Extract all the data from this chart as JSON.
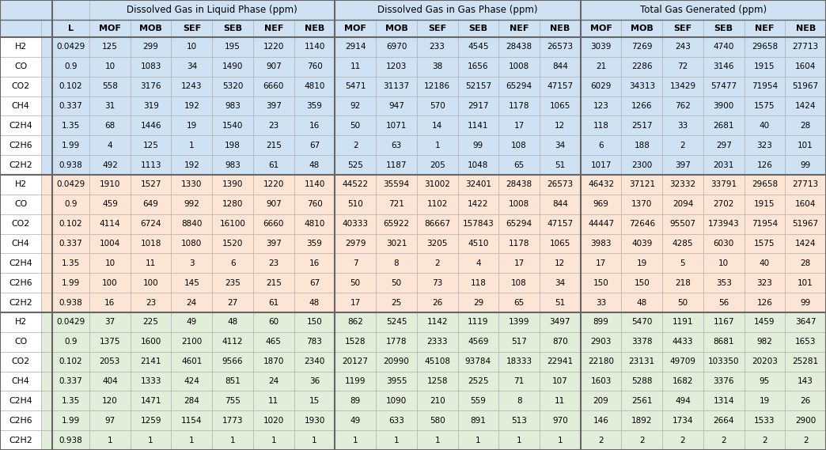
{
  "row_groups": [
    {
      "color": "#cfe2f3",
      "rows": [
        [
          "H2",
          "0.0429",
          "125",
          "299",
          "10",
          "195",
          "1220",
          "1140",
          "2914",
          "6970",
          "233",
          "4545",
          "28438",
          "26573",
          "3039",
          "7269",
          "243",
          "4740",
          "29658",
          "27713"
        ],
        [
          "CO",
          "0.9",
          "10",
          "1083",
          "34",
          "1490",
          "907",
          "760",
          "11",
          "1203",
          "38",
          "1656",
          "1008",
          "844",
          "21",
          "2286",
          "72",
          "3146",
          "1915",
          "1604"
        ],
        [
          "CO2",
          "0.102",
          "558",
          "3176",
          "1243",
          "5320",
          "6660",
          "4810",
          "5471",
          "31137",
          "12186",
          "52157",
          "65294",
          "47157",
          "6029",
          "34313",
          "13429",
          "57477",
          "71954",
          "51967"
        ],
        [
          "CH4",
          "0.337",
          "31",
          "319",
          "192",
          "983",
          "397",
          "359",
          "92",
          "947",
          "570",
          "2917",
          "1178",
          "1065",
          "123",
          "1266",
          "762",
          "3900",
          "1575",
          "1424"
        ],
        [
          "C2H4",
          "1.35",
          "68",
          "1446",
          "19",
          "1540",
          "23",
          "16",
          "50",
          "1071",
          "14",
          "1141",
          "17",
          "12",
          "118",
          "2517",
          "33",
          "2681",
          "40",
          "28"
        ],
        [
          "C2H6",
          "1.99",
          "4",
          "125",
          "1",
          "198",
          "215",
          "67",
          "2",
          "63",
          "1",
          "99",
          "108",
          "34",
          "6",
          "188",
          "2",
          "297",
          "323",
          "101"
        ],
        [
          "C2H2",
          "0.938",
          "492",
          "1113",
          "192",
          "983",
          "61",
          "48",
          "525",
          "1187",
          "205",
          "1048",
          "65",
          "51",
          "1017",
          "2300",
          "397",
          "2031",
          "126",
          "99"
        ]
      ]
    },
    {
      "color": "#fce5d4",
      "rows": [
        [
          "H2",
          "0.0429",
          "1910",
          "1527",
          "1330",
          "1390",
          "1220",
          "1140",
          "44522",
          "35594",
          "31002",
          "32401",
          "28438",
          "26573",
          "46432",
          "37121",
          "32332",
          "33791",
          "29658",
          "27713"
        ],
        [
          "CO",
          "0.9",
          "459",
          "649",
          "992",
          "1280",
          "907",
          "760",
          "510",
          "721",
          "1102",
          "1422",
          "1008",
          "844",
          "969",
          "1370",
          "2094",
          "2702",
          "1915",
          "1604"
        ],
        [
          "CO2",
          "0.102",
          "4114",
          "6724",
          "8840",
          "16100",
          "6660",
          "4810",
          "40333",
          "65922",
          "86667",
          "157843",
          "65294",
          "47157",
          "44447",
          "72646",
          "95507",
          "173943",
          "71954",
          "51967"
        ],
        [
          "CH4",
          "0.337",
          "1004",
          "1018",
          "1080",
          "1520",
          "397",
          "359",
          "2979",
          "3021",
          "3205",
          "4510",
          "1178",
          "1065",
          "3983",
          "4039",
          "4285",
          "6030",
          "1575",
          "1424"
        ],
        [
          "C2H4",
          "1.35",
          "10",
          "11",
          "3",
          "6",
          "23",
          "16",
          "7",
          "8",
          "2",
          "4",
          "17",
          "12",
          "17",
          "19",
          "5",
          "10",
          "40",
          "28"
        ],
        [
          "C2H6",
          "1.99",
          "100",
          "100",
          "145",
          "235",
          "215",
          "67",
          "50",
          "50",
          "73",
          "118",
          "108",
          "34",
          "150",
          "150",
          "218",
          "353",
          "323",
          "101"
        ],
        [
          "C2H2",
          "0.938",
          "16",
          "23",
          "24",
          "27",
          "61",
          "48",
          "17",
          "25",
          "26",
          "29",
          "65",
          "51",
          "33",
          "48",
          "50",
          "56",
          "126",
          "99"
        ]
      ]
    },
    {
      "color": "#e2eed9",
      "rows": [
        [
          "H2",
          "0.0429",
          "37",
          "225",
          "49",
          "48",
          "60",
          "150",
          "862",
          "5245",
          "1142",
          "1119",
          "1399",
          "3497",
          "899",
          "5470",
          "1191",
          "1167",
          "1459",
          "3647"
        ],
        [
          "CO",
          "0.9",
          "1375",
          "1600",
          "2100",
          "4112",
          "465",
          "783",
          "1528",
          "1778",
          "2333",
          "4569",
          "517",
          "870",
          "2903",
          "3378",
          "4433",
          "8681",
          "982",
          "1653"
        ],
        [
          "CO2",
          "0.102",
          "2053",
          "2141",
          "4601",
          "9566",
          "1870",
          "2340",
          "20127",
          "20990",
          "45108",
          "93784",
          "18333",
          "22941",
          "22180",
          "23131",
          "49709",
          "103350",
          "20203",
          "25281"
        ],
        [
          "CH4",
          "0.337",
          "404",
          "1333",
          "424",
          "851",
          "24",
          "36",
          "1199",
          "3955",
          "1258",
          "2525",
          "71",
          "107",
          "1603",
          "5288",
          "1682",
          "3376",
          "95",
          "143"
        ],
        [
          "C2H4",
          "1.35",
          "120",
          "1471",
          "284",
          "755",
          "11",
          "15",
          "89",
          "1090",
          "210",
          "559",
          "8",
          "11",
          "209",
          "2561",
          "494",
          "1314",
          "19",
          "26"
        ],
        [
          "C2H6",
          "1.99",
          "97",
          "1259",
          "1154",
          "1773",
          "1020",
          "1930",
          "49",
          "633",
          "580",
          "891",
          "513",
          "970",
          "146",
          "1892",
          "1734",
          "2664",
          "1533",
          "2900"
        ],
        [
          "C2H2",
          "0.938",
          "1",
          "1",
          "1",
          "1",
          "1",
          "1",
          "1",
          "1",
          "1",
          "1",
          "1",
          "1",
          "2",
          "2",
          "2",
          "2",
          "2",
          "2"
        ]
      ]
    }
  ],
  "header_bg": "#cfe2f3",
  "border_color": "#aaaaaa",
  "thick_border_color": "#666666",
  "figsize": [
    10.44,
    5.69
  ],
  "dpi": 100
}
